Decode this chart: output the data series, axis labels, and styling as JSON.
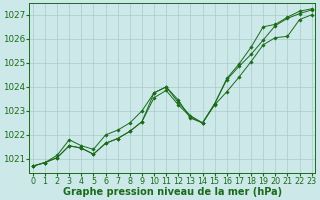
{
  "xlabel": "Graphe pression niveau de la mer (hPa)",
  "hours": [
    0,
    1,
    2,
    3,
    4,
    5,
    6,
    7,
    8,
    9,
    10,
    11,
    12,
    13,
    14,
    15,
    16,
    17,
    18,
    19,
    20,
    21,
    22,
    23
  ],
  "line1": [
    1020.7,
    1020.85,
    1021.05,
    1021.55,
    1021.45,
    1021.2,
    1021.65,
    1021.85,
    1022.15,
    1022.55,
    1023.55,
    1023.85,
    1023.25,
    1022.75,
    1022.5,
    1023.25,
    1023.8,
    1024.4,
    1025.05,
    1025.75,
    1026.05,
    1026.1,
    1026.8,
    1027.0
  ],
  "line2": [
    1020.7,
    1020.85,
    1021.05,
    1021.55,
    1021.45,
    1021.2,
    1021.65,
    1021.85,
    1022.15,
    1022.55,
    1023.75,
    1024.0,
    1023.35,
    1022.8,
    1022.5,
    1023.3,
    1024.3,
    1024.85,
    1025.35,
    1025.95,
    1026.55,
    1026.85,
    1027.05,
    1027.2
  ],
  "line3": [
    1020.7,
    1020.85,
    1021.15,
    1021.8,
    1021.55,
    1021.4,
    1022.0,
    1022.2,
    1022.5,
    1023.0,
    1023.75,
    1024.0,
    1023.45,
    1022.7,
    1022.5,
    1023.3,
    1024.35,
    1024.95,
    1025.65,
    1026.5,
    1026.6,
    1026.9,
    1027.15,
    1027.25
  ],
  "bg_color": "#cce8e8",
  "grid_color": "#aacccc",
  "line_color": "#1a6b1a",
  "marker": "D",
  "marker_size": 1.8,
  "ylim_min": 1020.4,
  "ylim_max": 1027.5,
  "yticks": [
    1021,
    1022,
    1023,
    1024,
    1025,
    1026,
    1027
  ],
  "title_fontsize": 7.0,
  "tick_fontsize": 5.8,
  "linewidth": 0.7
}
